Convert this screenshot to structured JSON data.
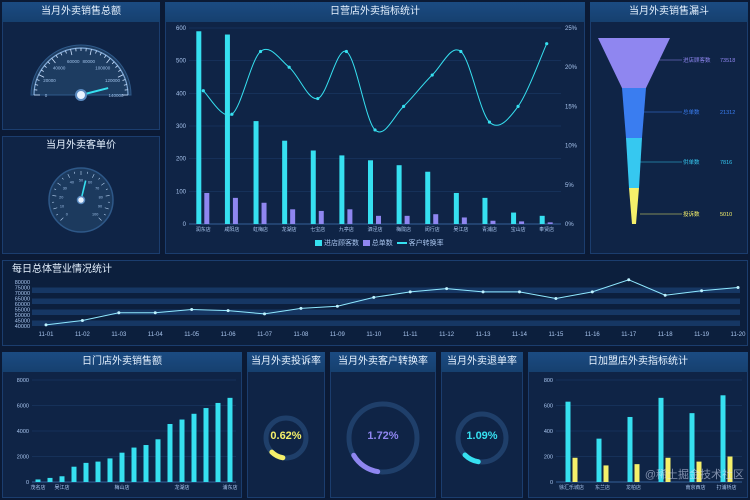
{
  "colors": {
    "cyan": "#36e0f0",
    "purple": "#8f86f0",
    "yellow": "#f5f06a",
    "grid": "#1e3f6d",
    "axis": "#3f6fae",
    "text": "#a9c5ee"
  },
  "panels": {
    "monthly_sales": {
      "title": "当月外卖销售总额"
    },
    "avg_price": {
      "title": "当月外卖客单价"
    },
    "store_stats": {
      "title": "日营店外卖指标统计"
    },
    "funnel": {
      "title": "当月外卖销售漏斗"
    },
    "daily_total": {
      "title": "每日总体营业情况统计"
    },
    "store_sales": {
      "title": "日门店外卖销售额"
    },
    "complaint": {
      "title": "当月外卖投诉率",
      "value": "0.62%"
    },
    "conversion": {
      "title": "当月外卖客户转换率",
      "value": "1.72%"
    },
    "refund": {
      "title": "当月外卖退单率",
      "value": "1.09%"
    },
    "store_index": {
      "title": "日加盟店外卖指标统计"
    }
  },
  "gauge_big": {
    "ticks": [
      "0",
      "20000",
      "40000",
      "60000",
      "80000",
      "100000",
      "120000",
      "140000"
    ],
    "fraction": 0.06
  },
  "gauge_small": {
    "ticks": [
      "0",
      "10",
      "20",
      "30",
      "40",
      "50",
      "60",
      "70",
      "80",
      "90",
      "100"
    ],
    "fraction": 0.55
  },
  "watermark": "@稀土掘金技术社区",
  "chart_data": [
    {
      "id": "store_stats",
      "type": "bar",
      "categories": [
        "润东店",
        "咸阳店",
        "虹梅店",
        "龙湖店",
        "七宝店",
        "九亭店",
        "泗泾店",
        "梅陇店",
        "闵行店",
        "吴江店",
        "青浦店",
        "宝山店",
        "奉贤店"
      ],
      "series": [
        {
          "name": "进店顾客数",
          "type": "bar",
          "values": [
            590,
            580,
            315,
            255,
            225,
            210,
            195,
            180,
            160,
            95,
            80,
            35,
            25
          ]
        },
        {
          "name": "总单数",
          "type": "bar",
          "values": [
            95,
            80,
            65,
            45,
            40,
            45,
            25,
            25,
            30,
            20,
            10,
            8,
            5
          ]
        },
        {
          "name": "客户转换率",
          "type": "line",
          "axis": "right",
          "values": [
            17,
            14,
            22,
            20,
            16,
            22,
            12,
            15,
            19,
            22,
            13,
            15,
            23
          ]
        }
      ],
      "ylim": [
        0,
        600
      ],
      "yticks": [
        0,
        100,
        200,
        300,
        400,
        500,
        600
      ],
      "y2lim": [
        0,
        25
      ],
      "y2ticks": [
        "0%",
        "5%",
        "10%",
        "15%",
        "20%",
        "25%"
      ],
      "legend": "bottom"
    },
    {
      "id": "funnel",
      "type": "funnel",
      "stages": [
        {
          "name": "进店顾客数",
          "value": "73518",
          "color": "#8f86f0"
        },
        {
          "name": "总单数",
          "value": "21312",
          "color": "#3a7df0"
        },
        {
          "name": "供单数",
          "value": "7816",
          "color": "#36c8f0"
        },
        {
          "name": "投诉数",
          "value": "5010",
          "color": "#f5f06a"
        }
      ]
    },
    {
      "id": "daily_total",
      "type": "line",
      "x": [
        "11-01",
        "11-02",
        "11-03",
        "11-04",
        "11-05",
        "11-06",
        "11-07",
        "11-08",
        "11-09",
        "11-10",
        "11-11",
        "11-12",
        "11-13",
        "11-14",
        "11-15",
        "11-16",
        "11-17",
        "11-18",
        "11-19",
        "11-20"
      ],
      "values": [
        41000,
        45000,
        52000,
        52000,
        55000,
        54000,
        51000,
        56000,
        58000,
        66000,
        71000,
        74000,
        71000,
        71000,
        65000,
        71000,
        82000,
        68000,
        72000,
        75000
      ],
      "ylim": [
        40000,
        80000
      ],
      "yticks": [
        "40000",
        "45000",
        "50000",
        "55000",
        "60000",
        "65000",
        "70000",
        "75000",
        "80000"
      ]
    },
    {
      "id": "store_sales",
      "type": "bar",
      "categories": [
        "",
        "",
        "",
        "",
        "",
        "",
        "",
        "",
        "",
        "",
        "",
        "",
        "",
        "",
        "",
        "",
        ""
      ],
      "xticklabels": [
        "茂名店",
        "",
        "吴江店",
        "",
        "",
        "",
        "",
        "梅山店",
        "",
        "",
        "",
        "",
        "龙湖店",
        "",
        "",
        "",
        "浦东店"
      ],
      "values": [
        200,
        320,
        450,
        1200,
        1500,
        1600,
        1850,
        2300,
        2700,
        2900,
        3350,
        4550,
        4900,
        5350,
        5800,
        6200,
        6600
      ],
      "ylim": [
        0,
        8000
      ],
      "yticks": [
        0,
        2000,
        4000,
        6000,
        8000
      ]
    },
    {
      "id": "store_index",
      "type": "bar",
      "categories": [
        "",
        "",
        "",
        "",
        "",
        ""
      ],
      "xticklabels": [
        "徐汇乐城店",
        "东兰店",
        "龙柏店",
        "",
        "南京西店",
        "打浦桥店"
      ],
      "series": [
        {
          "name": "",
          "values": [
            630,
            340,
            510,
            660,
            540,
            680
          ]
        },
        {
          "name": "",
          "values": [
            190,
            130,
            140,
            190,
            160,
            200
          ]
        }
      ],
      "ylim": [
        0,
        800
      ],
      "yticks": [
        0,
        200,
        400,
        600,
        800
      ]
    }
  ]
}
